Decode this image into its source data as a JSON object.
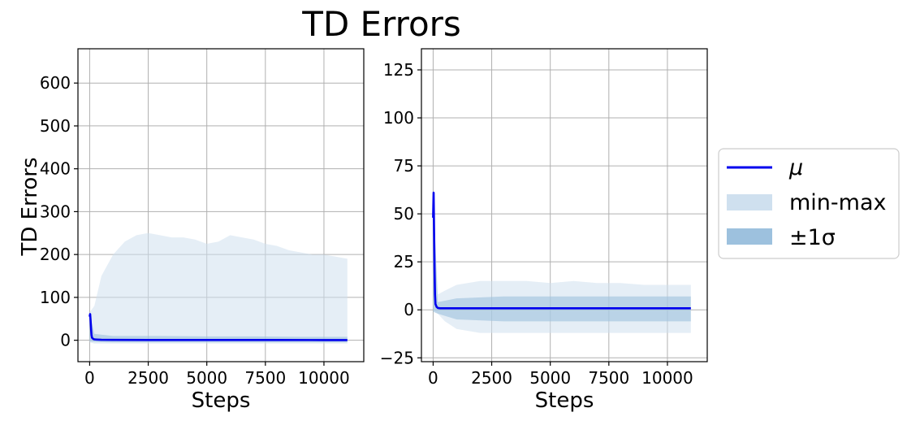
{
  "figure": {
    "title": "TD Errors",
    "ylabel": "TD Errors"
  },
  "legend": {
    "placement": "right",
    "items": [
      {
        "label": "μ",
        "kind": "line",
        "color": "#0000ee"
      },
      {
        "label": "min-max",
        "kind": "band",
        "color": "#cfe0ef"
      },
      {
        "label": "±1σ",
        "kind": "band",
        "color": "#9dc1de"
      }
    ]
  },
  "chart_data": [
    {
      "type": "line",
      "xlabel": "Steps",
      "ylabel": "TD Errors",
      "xlim": [
        -500,
        11700
      ],
      "ylim": [
        -50,
        680
      ],
      "xticks": [
        0,
        2500,
        5000,
        7500,
        10000
      ],
      "yticks": [
        0,
        100,
        200,
        300,
        400,
        500,
        600
      ],
      "grid": true,
      "series": [
        {
          "name": "μ",
          "x": [
            0,
            20,
            40,
            60,
            80,
            100,
            150,
            200,
            300,
            500,
            1000,
            2500,
            5000,
            7500,
            10000,
            11000
          ],
          "y": [
            55,
            61,
            45,
            25,
            12,
            6,
            3,
            2,
            1.5,
            1,
            0.8,
            0.7,
            0.6,
            0.6,
            0.5,
            0.5
          ],
          "color": "#0000ee"
        },
        {
          "name": "min-max",
          "x": [
            0,
            200,
            500,
            1000,
            1500,
            2000,
            2500,
            3000,
            3500,
            4000,
            4500,
            5000,
            5500,
            6000,
            6500,
            7000,
            7500,
            8000,
            8500,
            9000,
            9500,
            10000,
            10500,
            11000
          ],
          "lower": [
            -5,
            -8,
            -8,
            -8,
            -8,
            -8,
            -8,
            -8,
            -8,
            -8,
            -8,
            -8,
            -8,
            -8,
            -8,
            -8,
            -8,
            -8,
            -8,
            -8,
            -8,
            -8,
            -8,
            -8
          ],
          "upper": [
            65,
            80,
            150,
            200,
            230,
            245,
            250,
            245,
            240,
            240,
            235,
            225,
            230,
            245,
            240,
            235,
            225,
            220,
            210,
            205,
            200,
            200,
            195,
            190
          ],
          "color": "#cfe0ef"
        },
        {
          "name": "±1σ",
          "x": [
            0,
            200,
            1000,
            3000,
            5000,
            7000,
            9000,
            11000
          ],
          "lower": [
            -3,
            -4,
            -5,
            -5,
            -5,
            -5,
            -5,
            -5
          ],
          "upper": [
            62,
            15,
            10,
            10,
            9,
            9,
            8,
            8
          ],
          "color": "#9dc1de"
        }
      ]
    },
    {
      "type": "line",
      "xlabel": "Steps",
      "ylabel": "",
      "xlim": [
        -500,
        11700
      ],
      "ylim": [
        -27,
        136
      ],
      "xticks": [
        0,
        2500,
        5000,
        7500,
        10000
      ],
      "yticks": [
        -25,
        0,
        25,
        50,
        75,
        100,
        125
      ],
      "grid": true,
      "series": [
        {
          "name": "μ",
          "x": [
            0,
            20,
            40,
            60,
            80,
            100,
            150,
            200,
            300,
            500,
            1000,
            2500,
            5000,
            7500,
            10000,
            11000
          ],
          "y": [
            48,
            61,
            40,
            20,
            8,
            3,
            1.5,
            1,
            0.8,
            0.8,
            0.8,
            0.8,
            0.8,
            0.8,
            0.8,
            0.8
          ],
          "color": "#0000ee"
        },
        {
          "name": "min-max",
          "x": [
            0,
            200,
            500,
            1000,
            2000,
            3000,
            4000,
            5000,
            6000,
            7000,
            8000,
            9000,
            10000,
            11000
          ],
          "lower": [
            0,
            -2,
            -6,
            -10,
            -12,
            -12,
            -12,
            -12,
            -12,
            -12,
            -12,
            -12,
            -12,
            -12
          ],
          "upper": [
            61,
            8,
            10,
            13,
            15,
            15,
            15,
            14,
            15,
            14,
            14,
            13,
            13,
            13
          ],
          "color": "#cfe0ef"
        },
        {
          "name": "±1σ",
          "x": [
            0,
            200,
            1000,
            3000,
            5000,
            7000,
            9000,
            11000
          ],
          "lower": [
            -1,
            -2,
            -5,
            -6,
            -6,
            -6,
            -6,
            -6
          ],
          "upper": [
            60,
            4,
            6,
            7,
            7,
            7,
            7,
            7
          ],
          "color": "#9dc1de"
        }
      ]
    }
  ]
}
